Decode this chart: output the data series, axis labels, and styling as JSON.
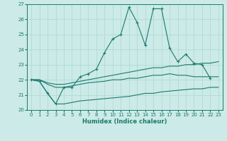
{
  "title": "",
  "xlabel": "Humidex (Indice chaleur)",
  "xlim": [
    -0.5,
    23.5
  ],
  "ylim": [
    20,
    27
  ],
  "xticks": [
    0,
    1,
    2,
    3,
    4,
    5,
    6,
    7,
    8,
    9,
    10,
    11,
    12,
    13,
    14,
    15,
    16,
    17,
    18,
    19,
    20,
    21,
    22,
    23
  ],
  "yticks": [
    20,
    21,
    22,
    23,
    24,
    25,
    26,
    27
  ],
  "bg_color": "#cceae7",
  "line_color": "#1a7a6e",
  "grid_color": "#aad8d4",
  "line1_x": [
    0,
    1,
    2,
    3,
    4,
    5,
    6,
    7,
    8,
    9,
    10,
    11,
    12,
    13,
    14,
    15,
    16,
    17,
    18,
    19,
    20,
    21,
    22
  ],
  "line1_y": [
    22.0,
    21.9,
    21.1,
    20.4,
    21.5,
    21.5,
    22.2,
    22.4,
    22.7,
    23.8,
    24.7,
    25.0,
    26.8,
    25.8,
    24.3,
    26.7,
    26.7,
    24.1,
    23.2,
    23.7,
    23.1,
    23.0,
    22.1
  ],
  "line2_x": [
    0,
    1,
    2,
    3,
    4,
    5,
    6,
    7,
    8,
    9,
    10,
    11,
    12,
    13,
    14,
    15,
    16,
    17,
    18,
    19,
    20,
    21,
    22,
    23
  ],
  "line2_y": [
    22.0,
    22.0,
    21.8,
    21.7,
    21.7,
    21.8,
    21.9,
    22.0,
    22.1,
    22.2,
    22.3,
    22.4,
    22.5,
    22.6,
    22.7,
    22.8,
    22.8,
    22.9,
    22.9,
    23.0,
    23.0,
    23.1,
    23.1,
    23.2
  ],
  "line3_x": [
    0,
    1,
    2,
    3,
    4,
    5,
    6,
    7,
    8,
    9,
    10,
    11,
    12,
    13,
    14,
    15,
    16,
    17,
    18,
    19,
    20,
    21,
    22,
    23
  ],
  "line3_y": [
    22.0,
    22.0,
    21.7,
    21.5,
    21.5,
    21.6,
    21.7,
    21.8,
    21.85,
    21.9,
    22.0,
    22.0,
    22.1,
    22.1,
    22.2,
    22.3,
    22.3,
    22.4,
    22.3,
    22.3,
    22.2,
    22.2,
    22.2,
    22.2
  ],
  "line4_x": [
    0,
    1,
    2,
    3,
    4,
    5,
    6,
    7,
    8,
    9,
    10,
    11,
    12,
    13,
    14,
    15,
    16,
    17,
    18,
    19,
    20,
    21,
    22,
    23
  ],
  "line4_y": [
    22.0,
    21.9,
    21.1,
    20.4,
    20.4,
    20.5,
    20.6,
    20.65,
    20.7,
    20.75,
    20.8,
    20.85,
    20.9,
    21.0,
    21.1,
    21.1,
    21.2,
    21.25,
    21.3,
    21.35,
    21.4,
    21.4,
    21.5,
    21.5
  ]
}
